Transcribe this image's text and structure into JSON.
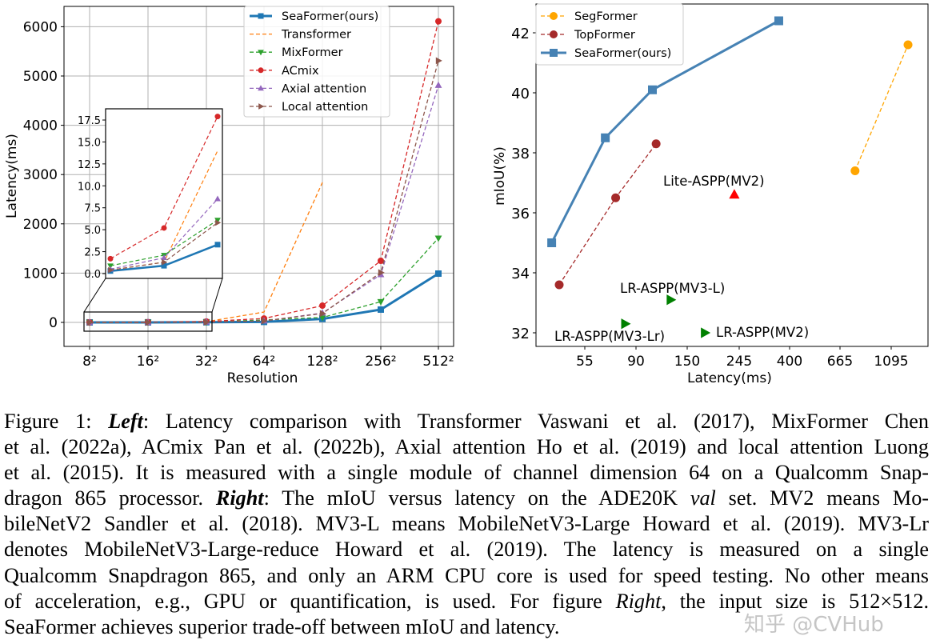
{
  "figure": {
    "watermark": "知乎 @CVHub",
    "caption_lines": [
      [
        {
          "t": "Figure 1: "
        },
        {
          "t": "Left",
          "s": "bi"
        },
        {
          "t": ":  Latency comparison with Transformer Vaswani et al. (2017), MixFormer Chen"
        }
      ],
      [
        {
          "t": "et al. (2022a), ACmix Pan et al. (2022b), Axial attention Ho et al. (2019) and local attention Luong"
        }
      ],
      [
        {
          "t": "et al. (2015).  It is measured with a single module of channel dimension 64 on a Qualcomm Snap-"
        }
      ],
      [
        {
          "t": "dragon 865 processor. "
        },
        {
          "t": "Right",
          "s": "bi"
        },
        {
          "t": ": The mIoU versus latency on the ADE20K "
        },
        {
          "t": "val",
          "s": "it"
        },
        {
          "t": " set. MV2 means Mo-"
        }
      ],
      [
        {
          "t": "bileNetV2 Sandler et al. (2018). MV3-L means MobileNetV3-Large Howard et al. (2019). MV3-Lr"
        }
      ],
      [
        {
          "t": "denotes MobileNetV3-Large-reduce Howard et al. (2019).  The latency is measured on a single"
        }
      ],
      [
        {
          "t": "Qualcomm Snapdragon 865, and only an ARM CPU core is used for speed testing. No other means"
        }
      ],
      [
        {
          "t": "of acceleration, e.g., GPU or quantification, is used.  For figure "
        },
        {
          "t": "Right",
          "s": "it"
        },
        {
          "t": ", the input size is 512×512."
        }
      ],
      [
        {
          "t": "SeaFormer achieves superior trade-off between mIoU and latency."
        }
      ]
    ]
  },
  "chart_data": [
    {
      "type": "line",
      "xlabel": "Resolution",
      "ylabel": "Latency(ms)",
      "categories": [
        "8²",
        "16²",
        "32²",
        "64²",
        "128²",
        "256²",
        "512²"
      ],
      "ylim": [
        -500,
        6400
      ],
      "yticks": [
        0,
        1000,
        2000,
        3000,
        4000,
        5000,
        6000
      ],
      "grid": true,
      "legend": "top-right",
      "series": [
        {
          "name": "SeaFormer(ours)",
          "color": "#1f77b4",
          "dash": false,
          "marker": "square",
          "values": [
            0.3,
            0.9,
            3.3,
            10,
            70,
            260,
            990
          ]
        },
        {
          "name": "Transformer",
          "color": "#ff7f0e",
          "dash": true,
          "marker": "none",
          "values": [
            0.4,
            1.3,
            14.0,
            210,
            2840,
            null,
            null
          ]
        },
        {
          "name": "MixFormer",
          "color": "#2ca02c",
          "dash": true,
          "marker": "triangle-down",
          "values": [
            0.9,
            2.1,
            6.1,
            50,
            100,
            420,
            1710
          ]
        },
        {
          "name": "ACmix",
          "color": "#d62728",
          "dash": true,
          "marker": "circle",
          "values": [
            1.7,
            5.2,
            17.9,
            80,
            340,
            1250,
            6110
          ]
        },
        {
          "name": "Axial attention",
          "color": "#9467bd",
          "dash": true,
          "marker": "triangle-up",
          "values": [
            0.5,
            1.8,
            8.5,
            30,
            190,
            970,
            4810
          ]
        },
        {
          "name": "Local attention",
          "color": "#8c564b",
          "dash": true,
          "marker": "triangle-right",
          "values": [
            0.4,
            1.3,
            5.8,
            30,
            180,
            1010,
            5310
          ]
        }
      ],
      "inset": {
        "categories": [
          "8²",
          "16²",
          "32²"
        ],
        "ylim": [
          0,
          18
        ],
        "yticks": [
          "0.0",
          "2.5",
          "5.0",
          "7.5",
          "10.0",
          "12.5",
          "15.0",
          "17.5"
        ]
      }
    },
    {
      "type": "scatter",
      "xlabel": "Latency(ms)",
      "ylabel": "mIoU(%)",
      "xscale": "log",
      "xticks": [
        55,
        90,
        150,
        245,
        400,
        665,
        1095
      ],
      "yticks": [
        32,
        34,
        36,
        38,
        40,
        42
      ],
      "ylim": [
        31.5,
        43.0
      ],
      "grid": false,
      "legend": "top-left",
      "series": [
        {
          "name": "SegFormer",
          "color": "#ffa500",
          "dash": true,
          "marker": "circle",
          "legend": true,
          "points": [
            [
              770,
              37.4
            ],
            [
              1290,
              41.6
            ]
          ]
        },
        {
          "name": "TopFormer",
          "color": "#a52a2a",
          "dash": true,
          "marker": "circle",
          "legend": true,
          "points": [
            [
              43,
              33.6
            ],
            [
              74,
              36.5
            ],
            [
              110,
              38.3
            ]
          ]
        },
        {
          "name": "SeaFormer(ours)",
          "color": "#4682b4",
          "dash": false,
          "marker": "square",
          "legend": true,
          "points": [
            [
              40,
              35.0
            ],
            [
              67,
              38.5
            ],
            [
              106,
              40.1
            ],
            [
              360,
              42.4
            ]
          ]
        }
      ],
      "annotations": [
        {
          "label": "Lite-ASPP(MV2)",
          "color": "#ff0000",
          "marker": "triangle-up",
          "point": [
            234,
            36.6
          ]
        },
        {
          "label": "LR-ASPP(MV3-L)",
          "color": "#008000",
          "marker": "triangle-right",
          "point": [
            127,
            33.1
          ]
        },
        {
          "label": "LR-ASPP(MV3-Lr)",
          "color": "#008000",
          "marker": "triangle-right",
          "point": [
            81,
            32.3
          ]
        },
        {
          "label": "LR-ASPP(MV2)",
          "color": "#008000",
          "marker": "triangle-right",
          "point": [
            177,
            32.0
          ]
        }
      ]
    }
  ]
}
